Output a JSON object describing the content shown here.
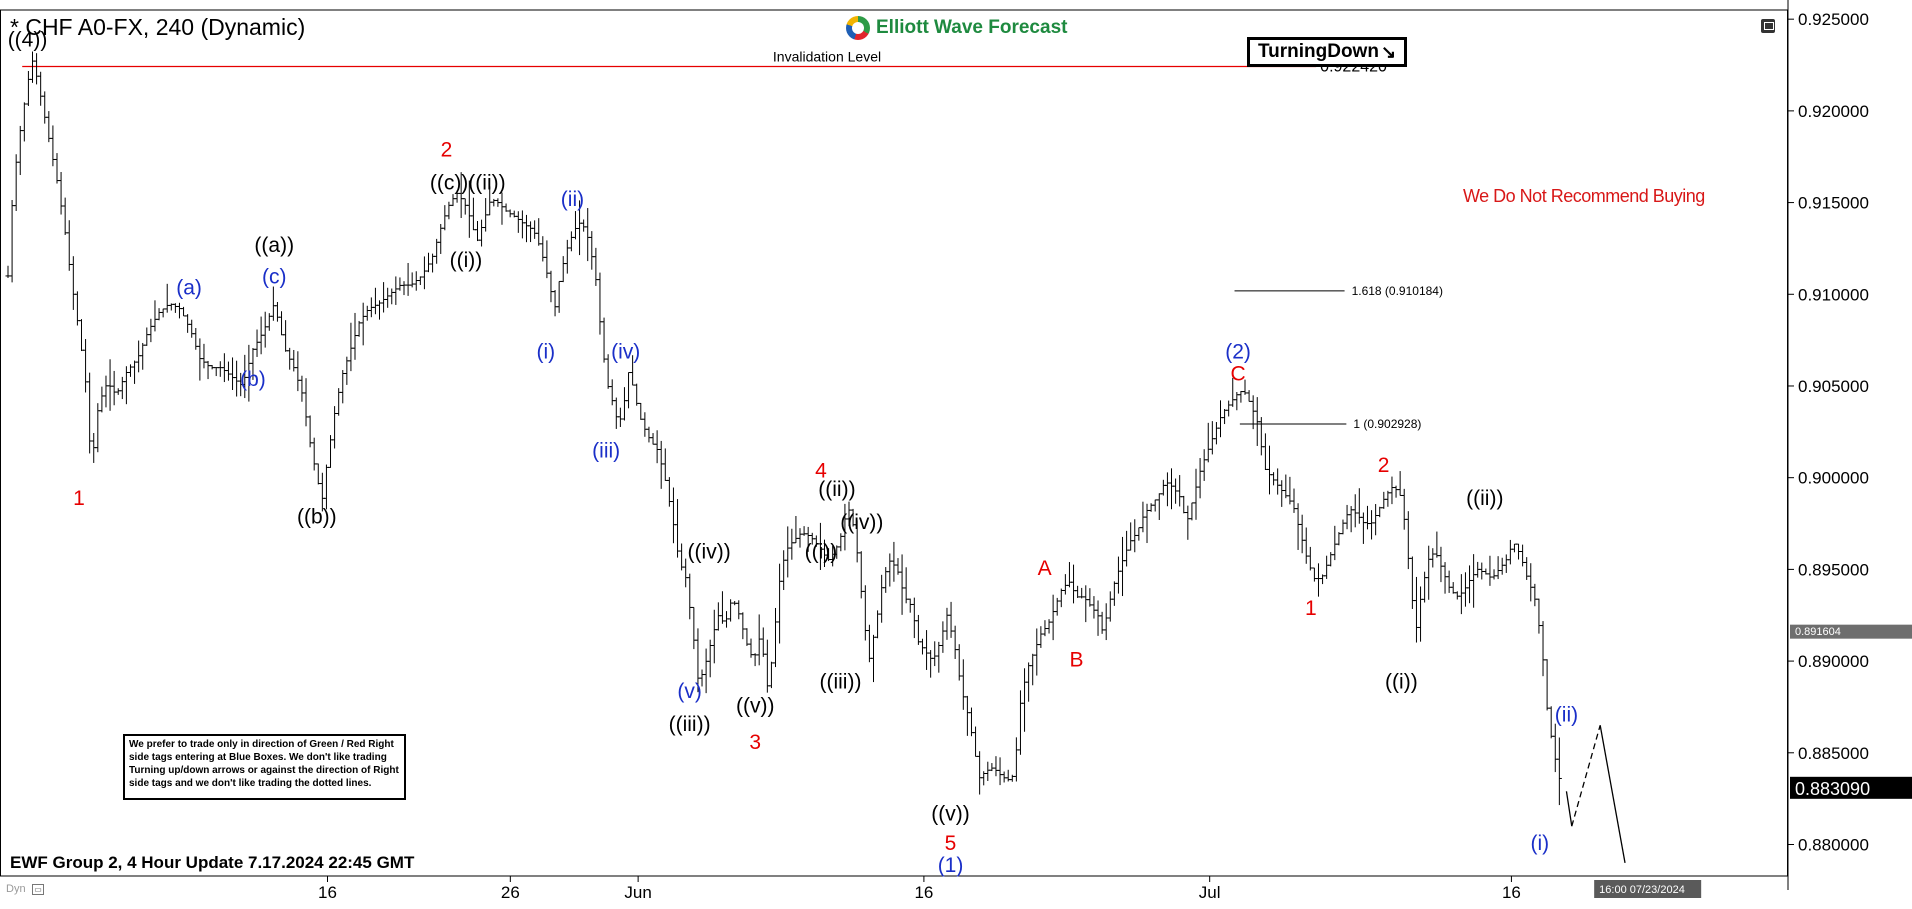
{
  "header": {
    "title": "* CHF A0-FX, 240 (Dynamic)",
    "brand": "Elliott Wave Forecast",
    "badge_label": "TurningDown",
    "badge_icon": "down-right-arrow-icon",
    "recommendation": "We Do Not Recommend Buying"
  },
  "note": {
    "text": "We prefer to trade only in direction of Green / Red Right side tags entering at Blue Boxes. We don't like trading Turning up/down arrows or against the direction of Right side tags and we don't like trading the dotted lines."
  },
  "footer": {
    "update": "EWF Group 2, 4 Hour Update 7.17.2024 22:45 GMT",
    "dyn": "Dyn"
  },
  "chart_data": {
    "type": "ohlc",
    "colors": {
      "bars": "#000000",
      "invalidation_line": "#e60000",
      "red_labels": "#e60000",
      "blue_labels": "#1a2fc8",
      "black_labels": "#000000"
    },
    "y_axis": {
      "ylim": [
        0.8785,
        0.9255
      ],
      "ticks": [
        0.925,
        0.92,
        0.915,
        0.91,
        0.905,
        0.9,
        0.895,
        0.89,
        0.885,
        0.88
      ],
      "tick_labels": [
        "0.925000",
        "0.920000",
        "0.915000",
        "0.910000",
        "0.905000",
        "0.900000",
        "0.895000",
        "0.890000",
        "0.885000",
        "0.880000"
      ]
    },
    "x_axis": {
      "xlim": [
        0,
        1000
      ],
      "ticks": [
        {
          "x": 180,
          "label": "16"
        },
        {
          "x": 283,
          "label": "26"
        },
        {
          "x": 355,
          "label": "Jun"
        },
        {
          "x": 516,
          "label": "16"
        },
        {
          "x": 677,
          "label": "Jul"
        },
        {
          "x": 847,
          "label": "16"
        }
      ],
      "cursor_label": "16:00 07/23/2024",
      "cursor_x": 897
    },
    "price_tags": [
      {
        "value": 0.891604,
        "label": "0.891604",
        "style": "gray"
      },
      {
        "value": 0.88309,
        "label": "0.883090",
        "style": "black"
      }
    ],
    "invalidation": {
      "value": 0.92242,
      "label": "0.922420",
      "text": "Invalidation Level",
      "x_start": 8,
      "x_end": 737
    },
    "fib_levels": [
      {
        "value": 0.910184,
        "label": "1.618 (0.910184)",
        "x_start": 691,
        "x_end": 753
      },
      {
        "value": 0.902928,
        "label": "1 (0.902928)",
        "x_start": 694,
        "x_end": 754
      }
    ],
    "price_path": [
      [
        0,
        0.911
      ],
      [
        3,
        0.916
      ],
      [
        7,
        0.919
      ],
      [
        11,
        0.9215
      ],
      [
        14,
        0.9228
      ],
      [
        17,
        0.9215
      ],
      [
        20,
        0.92
      ],
      [
        24,
        0.918
      ],
      [
        28,
        0.916
      ],
      [
        32,
        0.9135
      ],
      [
        36,
        0.9105
      ],
      [
        40,
        0.908
      ],
      [
        44,
        0.905
      ],
      [
        47,
        0.9005
      ],
      [
        51,
        0.904
      ],
      [
        56,
        0.9052
      ],
      [
        61,
        0.9045
      ],
      [
        67,
        0.9058
      ],
      [
        73,
        0.9065
      ],
      [
        79,
        0.908
      ],
      [
        85,
        0.909
      ],
      [
        91,
        0.9095
      ],
      [
        97,
        0.9092
      ],
      [
        103,
        0.908
      ],
      [
        108,
        0.9065
      ],
      [
        114,
        0.906
      ],
      [
        120,
        0.906
      ],
      [
        126,
        0.9055
      ],
      [
        132,
        0.905
      ],
      [
        138,
        0.907
      ],
      [
        144,
        0.908
      ],
      [
        150,
        0.9095
      ],
      [
        156,
        0.907
      ],
      [
        161,
        0.906
      ],
      [
        166,
        0.9045
      ],
      [
        170,
        0.902
      ],
      [
        174,
        0.9
      ],
      [
        177,
        0.8988
      ],
      [
        180,
        0.901
      ],
      [
        184,
        0.9035
      ],
      [
        188,
        0.9055
      ],
      [
        193,
        0.907
      ],
      [
        198,
        0.9085
      ],
      [
        203,
        0.9092
      ],
      [
        209,
        0.9095
      ],
      [
        215,
        0.91
      ],
      [
        221,
        0.9105
      ],
      [
        227,
        0.9105
      ],
      [
        233,
        0.911
      ],
      [
        239,
        0.912
      ],
      [
        245,
        0.914
      ],
      [
        249,
        0.915
      ],
      [
        253,
        0.9155
      ],
      [
        257,
        0.915
      ],
      [
        261,
        0.914
      ],
      [
        264,
        0.9128
      ],
      [
        268,
        0.914
      ],
      [
        272,
        0.9152
      ],
      [
        276,
        0.915
      ],
      [
        281,
        0.9145
      ],
      [
        286,
        0.9142
      ],
      [
        291,
        0.9138
      ],
      [
        296,
        0.9135
      ],
      [
        300,
        0.9125
      ],
      [
        304,
        0.911
      ],
      [
        308,
        0.9092
      ],
      [
        311,
        0.911
      ],
      [
        315,
        0.9125
      ],
      [
        319,
        0.9135
      ],
      [
        323,
        0.914
      ],
      [
        327,
        0.913
      ],
      [
        331,
        0.911
      ],
      [
        335,
        0.907
      ],
      [
        338,
        0.905
      ],
      [
        341,
        0.904
      ],
      [
        344,
        0.9028
      ],
      [
        347,
        0.904
      ],
      [
        350,
        0.906
      ],
      [
        353,
        0.9045
      ],
      [
        357,
        0.903
      ],
      [
        362,
        0.902
      ],
      [
        366,
        0.9015
      ],
      [
        370,
        0.9
      ],
      [
        374,
        0.898
      ],
      [
        378,
        0.8955
      ],
      [
        382,
        0.8945
      ],
      [
        386,
        0.8915
      ],
      [
        389,
        0.8888
      ],
      [
        392,
        0.8895
      ],
      [
        396,
        0.891
      ],
      [
        400,
        0.8925
      ],
      [
        404,
        0.892
      ],
      [
        408,
        0.8935
      ],
      [
        412,
        0.8925
      ],
      [
        416,
        0.891
      ],
      [
        420,
        0.89
      ],
      [
        424,
        0.8915
      ],
      [
        428,
        0.8885
      ],
      [
        431,
        0.8905
      ],
      [
        434,
        0.894
      ],
      [
        438,
        0.896
      ],
      [
        442,
        0.8965
      ],
      [
        447,
        0.897
      ],
      [
        452,
        0.8968
      ],
      [
        457,
        0.8962
      ],
      [
        462,
        0.8955
      ],
      [
        466,
        0.896
      ],
      [
        470,
        0.897
      ],
      [
        473,
        0.8985
      ],
      [
        476,
        0.8975
      ],
      [
        479,
        0.8955
      ],
      [
        482,
        0.8925
      ],
      [
        485,
        0.89
      ],
      [
        489,
        0.892
      ],
      [
        493,
        0.8945
      ],
      [
        497,
        0.8955
      ],
      [
        501,
        0.895
      ],
      [
        505,
        0.8935
      ],
      [
        509,
        0.893
      ],
      [
        513,
        0.891
      ],
      [
        517,
        0.8905
      ],
      [
        521,
        0.89
      ],
      [
        525,
        0.891
      ],
      [
        529,
        0.8925
      ],
      [
        533,
        0.891
      ],
      [
        537,
        0.8885
      ],
      [
        541,
        0.887
      ],
      [
        544,
        0.8855
      ],
      [
        547,
        0.8836
      ],
      [
        551,
        0.884
      ],
      [
        555,
        0.8842
      ],
      [
        559,
        0.8838
      ],
      [
        563,
        0.8835
      ],
      [
        567,
        0.8838
      ],
      [
        570,
        0.8875
      ],
      [
        574,
        0.8895
      ],
      [
        578,
        0.8905
      ],
      [
        582,
        0.8915
      ],
      [
        586,
        0.892
      ],
      [
        590,
        0.893
      ],
      [
        594,
        0.894
      ],
      [
        598,
        0.8943
      ],
      [
        602,
        0.8935
      ],
      [
        606,
        0.8935
      ],
      [
        610,
        0.893
      ],
      [
        614,
        0.8925
      ],
      [
        617,
        0.8915
      ],
      [
        620,
        0.893
      ],
      [
        624,
        0.8945
      ],
      [
        628,
        0.8955
      ],
      [
        632,
        0.8965
      ],
      [
        636,
        0.897
      ],
      [
        640,
        0.898
      ],
      [
        644,
        0.8985
      ],
      [
        648,
        0.899
      ],
      [
        652,
        0.8998
      ],
      [
        656,
        0.8995
      ],
      [
        660,
        0.899
      ],
      [
        664,
        0.8975
      ],
      [
        668,
        0.899
      ],
      [
        672,
        0.9005
      ],
      [
        676,
        0.9015
      ],
      [
        680,
        0.9025
      ],
      [
        684,
        0.9035
      ],
      [
        688,
        0.904
      ],
      [
        692,
        0.9045
      ],
      [
        696,
        0.9048
      ],
      [
        700,
        0.904
      ],
      [
        704,
        0.903
      ],
      [
        708,
        0.9005
      ],
      [
        712,
        0.9
      ],
      [
        716,
        0.8995
      ],
      [
        720,
        0.899
      ],
      [
        724,
        0.8985
      ],
      [
        728,
        0.897
      ],
      [
        732,
        0.8955
      ],
      [
        736,
        0.8945
      ],
      [
        740,
        0.8945
      ],
      [
        744,
        0.8955
      ],
      [
        748,
        0.8965
      ],
      [
        752,
        0.8975
      ],
      [
        756,
        0.8983
      ],
      [
        760,
        0.898
      ],
      [
        764,
        0.8975
      ],
      [
        768,
        0.8975
      ],
      [
        772,
        0.8982
      ],
      [
        776,
        0.899
      ],
      [
        780,
        0.8995
      ],
      [
        784,
        0.8992
      ],
      [
        787,
        0.8975
      ],
      [
        790,
        0.8945
      ],
      [
        793,
        0.8915
      ],
      [
        796,
        0.8935
      ],
      [
        800,
        0.8955
      ],
      [
        804,
        0.896
      ],
      [
        808,
        0.895
      ],
      [
        812,
        0.894
      ],
      [
        816,
        0.8935
      ],
      [
        820,
        0.8938
      ],
      [
        824,
        0.8945
      ],
      [
        828,
        0.895
      ],
      [
        832,
        0.8948
      ],
      [
        836,
        0.8945
      ],
      [
        840,
        0.895
      ],
      [
        844,
        0.8955
      ],
      [
        848,
        0.8965
      ],
      [
        852,
        0.8958
      ],
      [
        856,
        0.8945
      ],
      [
        860,
        0.8935
      ],
      [
        864,
        0.891
      ],
      [
        867,
        0.8875
      ],
      [
        870,
        0.8855
      ],
      [
        873,
        0.884
      ],
      [
        876,
        0.8828
      ]
    ],
    "projection": [
      {
        "x1": 878,
        "y1": 0.8829,
        "x2": 881,
        "y2": 0.881,
        "dashed": false
      },
      {
        "x1": 881,
        "y1": 0.881,
        "x2": 897,
        "y2": 0.8865,
        "dashed": true
      },
      {
        "x1": 897,
        "y1": 0.8865,
        "x2": 911,
        "y2": 0.879,
        "dashed": false
      }
    ],
    "annotations": [
      {
        "text": "((4))",
        "x": 11,
        "y": 0.9235,
        "color": "black"
      },
      {
        "text": "1",
        "x": 40,
        "y": 0.8985,
        "color": "red"
      },
      {
        "text": "(a)",
        "x": 102,
        "y": 0.91,
        "color": "blue"
      },
      {
        "text": "(b)",
        "x": 138,
        "y": 0.905,
        "color": "blue"
      },
      {
        "text": "((a))",
        "x": 150,
        "y": 0.9123,
        "color": "black"
      },
      {
        "text": "(c)",
        "x": 150,
        "y": 0.9106,
        "color": "blue"
      },
      {
        "text": "((b))",
        "x": 174,
        "y": 0.8975,
        "color": "black"
      },
      {
        "text": "2",
        "x": 247,
        "y": 0.9175,
        "color": "red"
      },
      {
        "text": "((c))((ii))",
        "x": 259,
        "y": 0.9157,
        "color": "black"
      },
      {
        "text": "((i))",
        "x": 258,
        "y": 0.9115,
        "color": "black"
      },
      {
        "text": "(ii)",
        "x": 318,
        "y": 0.9148,
        "color": "blue"
      },
      {
        "text": "(i)",
        "x": 303,
        "y": 0.9065,
        "color": "blue"
      },
      {
        "text": "(iv)",
        "x": 348,
        "y": 0.9065,
        "color": "blue"
      },
      {
        "text": "(iii)",
        "x": 337,
        "y": 0.9011,
        "color": "blue"
      },
      {
        "text": "4",
        "x": 458,
        "y": 0.9,
        "color": "red"
      },
      {
        "text": "((ii))",
        "x": 467,
        "y": 0.899,
        "color": "black"
      },
      {
        "text": "((iv))",
        "x": 481,
        "y": 0.8972,
        "color": "black"
      },
      {
        "text": "((i))",
        "x": 458,
        "y": 0.8956,
        "color": "black"
      },
      {
        "text": "((iv))",
        "x": 395,
        "y": 0.8956,
        "color": "black"
      },
      {
        "text": "(v)",
        "x": 384,
        "y": 0.888,
        "color": "blue"
      },
      {
        "text": "((iii))",
        "x": 384,
        "y": 0.8862,
        "color": "black"
      },
      {
        "text": "((v))",
        "x": 421,
        "y": 0.8872,
        "color": "black"
      },
      {
        "text": "3",
        "x": 421,
        "y": 0.8852,
        "color": "red"
      },
      {
        "text": "((iii))",
        "x": 469,
        "y": 0.8885,
        "color": "black"
      },
      {
        "text": "((v))",
        "x": 531,
        "y": 0.8813,
        "color": "black"
      },
      {
        "text": "5",
        "x": 531,
        "y": 0.8797,
        "color": "red"
      },
      {
        "text": "(1)",
        "x": 531,
        "y": 0.8785,
        "color": "blue"
      },
      {
        "text": "A",
        "x": 584,
        "y": 0.8947,
        "color": "red"
      },
      {
        "text": "B",
        "x": 602,
        "y": 0.8897,
        "color": "red"
      },
      {
        "text": "(2)",
        "x": 693,
        "y": 0.9065,
        "color": "blue"
      },
      {
        "text": "C",
        "x": 693,
        "y": 0.9053,
        "color": "red"
      },
      {
        "text": "1",
        "x": 734,
        "y": 0.8925,
        "color": "red"
      },
      {
        "text": "2",
        "x": 775,
        "y": 0.9003,
        "color": "red"
      },
      {
        "text": "((i))",
        "x": 785,
        "y": 0.8885,
        "color": "black"
      },
      {
        "text": "((ii))",
        "x": 832,
        "y": 0.8985,
        "color": "black"
      },
      {
        "text": "(ii)",
        "x": 878,
        "y": 0.8867,
        "color": "blue"
      },
      {
        "text": "(i)",
        "x": 863,
        "y": 0.8797,
        "color": "blue"
      }
    ]
  }
}
